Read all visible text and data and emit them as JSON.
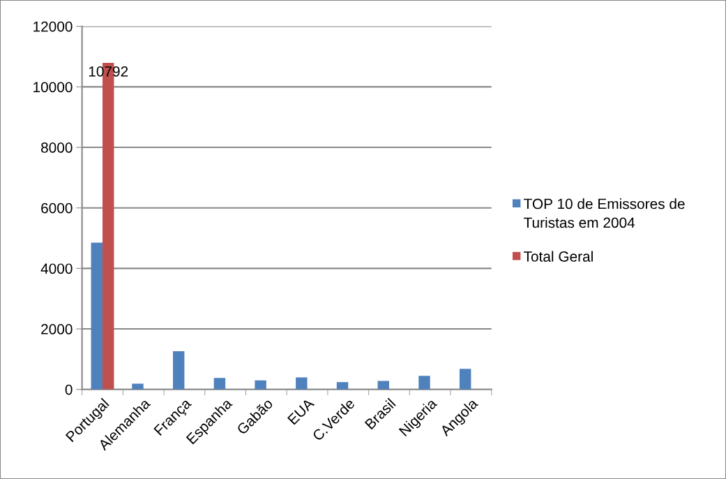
{
  "chart_data": {
    "type": "bar",
    "categories": [
      "Portugal",
      "Alemanha",
      "França",
      "Espanha",
      "Gabão",
      "EUA",
      "C.Verde",
      "Brasil",
      "Nigeria",
      "Angola"
    ],
    "series": [
      {
        "name": "TOP 10 de Emissores de Turistas em 2004",
        "color": "#4f81bd",
        "values": [
          4850,
          190,
          1260,
          380,
          300,
          400,
          240,
          280,
          450,
          680
        ]
      },
      {
        "name": "Total Geral",
        "color": "#c0504d",
        "values": [
          10792,
          null,
          null,
          null,
          null,
          null,
          null,
          null,
          null,
          null
        ],
        "value_labels": [
          "10792",
          null,
          null,
          null,
          null,
          null,
          null,
          null,
          null,
          null
        ]
      }
    ],
    "ylim": [
      0,
      12000
    ],
    "yticks": [
      0,
      2000,
      4000,
      6000,
      8000,
      10000,
      12000
    ],
    "grid": "y",
    "legend": "right"
  }
}
